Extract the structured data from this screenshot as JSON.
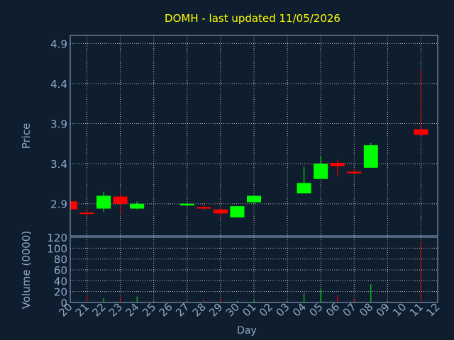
{
  "chart_data": [
    {
      "type": "candlestick",
      "title": "DOMH - last updated 11/05/2026",
      "ylabel": "Price",
      "ylim": [
        2.5,
        5.0
      ],
      "yticks": [
        "2.9",
        "3.4",
        "3.9",
        "4.4",
        "4.9"
      ],
      "ytick_values": [
        2.9,
        3.4,
        3.9,
        4.4,
        4.9
      ],
      "grid": true,
      "up_color": "#00ff00",
      "down_color": "#ff0000",
      "candles": [
        {
          "day": "20",
          "open": 2.93,
          "high": 2.93,
          "low": 2.83,
          "close": 2.83
        },
        {
          "day": "21",
          "open": 2.79,
          "high": 2.82,
          "low": 2.75,
          "close": 2.78
        },
        {
          "day": "22",
          "open": 2.84,
          "high": 3.05,
          "low": 2.8,
          "close": 3.0
        },
        {
          "day": "23",
          "open": 2.99,
          "high": 3.02,
          "low": 2.77,
          "close": 2.9
        },
        {
          "day": "24",
          "open": 2.84,
          "high": 2.93,
          "low": 2.83,
          "close": 2.9
        },
        {
          "day": "27",
          "open": 2.88,
          "high": 2.91,
          "low": 2.87,
          "close": 2.9
        },
        {
          "day": "28",
          "open": 2.86,
          "high": 2.9,
          "low": 2.82,
          "close": 2.84
        },
        {
          "day": "29",
          "open": 2.83,
          "high": 2.86,
          "low": 2.73,
          "close": 2.78
        },
        {
          "day": "30",
          "open": 2.73,
          "high": 2.87,
          "low": 2.73,
          "close": 2.87
        },
        {
          "day": "01",
          "open": 2.92,
          "high": 3.0,
          "low": 2.9,
          "close": 3.0
        },
        {
          "day": "04",
          "open": 3.03,
          "high": 3.36,
          "low": 3.03,
          "close": 3.16
        },
        {
          "day": "05",
          "open": 3.21,
          "high": 3.5,
          "low": 3.21,
          "close": 3.4
        },
        {
          "day": "06",
          "open": 3.41,
          "high": 3.45,
          "low": 3.25,
          "close": 3.37
        },
        {
          "day": "07",
          "open": 3.3,
          "high": 3.34,
          "low": 3.27,
          "close": 3.28
        },
        {
          "day": "08",
          "open": 3.35,
          "high": 3.66,
          "low": 3.35,
          "close": 3.63
        },
        {
          "day": "11",
          "open": 3.83,
          "high": 4.57,
          "low": 3.76,
          "close": 3.76
        }
      ]
    },
    {
      "type": "bar",
      "ylabel": "Volume (0000)",
      "xlabel": "Day",
      "ylim": [
        0,
        120
      ],
      "yticks": [
        "0",
        "20",
        "40",
        "60",
        "80",
        "100",
        "120"
      ],
      "ytick_values": [
        0,
        20,
        40,
        60,
        80,
        100,
        120
      ],
      "categories": [
        "20",
        "21",
        "22",
        "23",
        "24",
        "25",
        "26",
        "27",
        "28",
        "29",
        "30",
        "01",
        "02",
        "03",
        "04",
        "05",
        "06",
        "07",
        "08",
        "09",
        "10",
        "11",
        "12"
      ],
      "volume_bars": [
        {
          "day": "21",
          "value": 12,
          "color": "#ff0000"
        },
        {
          "day": "22",
          "value": 8,
          "color": "#00ff00"
        },
        {
          "day": "23",
          "value": 11,
          "color": "#ff0000"
        },
        {
          "day": "24",
          "value": 11,
          "color": "#00ff00"
        },
        {
          "day": "28",
          "value": 6,
          "color": "#ff0000"
        },
        {
          "day": "29",
          "value": 8,
          "color": "#ff0000"
        },
        {
          "day": "30",
          "value": 3,
          "color": "#00ff00"
        },
        {
          "day": "01",
          "value": 4,
          "color": "#00ff00"
        },
        {
          "day": "04",
          "value": 17,
          "color": "#00ff00"
        },
        {
          "day": "05",
          "value": 24,
          "color": "#00ff00"
        },
        {
          "day": "06",
          "value": 13,
          "color": "#ff0000"
        },
        {
          "day": "07",
          "value": 6,
          "color": "#ff0000"
        },
        {
          "day": "08",
          "value": 34,
          "color": "#00ff00"
        },
        {
          "day": "11",
          "value": 112,
          "color": "#ff0000"
        }
      ]
    }
  ],
  "colors": {
    "background": "#0f1e2e",
    "title": "#ffff00",
    "axis_text": "#8fa8c8",
    "axis_line": "#8fa8c8",
    "grid": "#d8d8d8"
  }
}
